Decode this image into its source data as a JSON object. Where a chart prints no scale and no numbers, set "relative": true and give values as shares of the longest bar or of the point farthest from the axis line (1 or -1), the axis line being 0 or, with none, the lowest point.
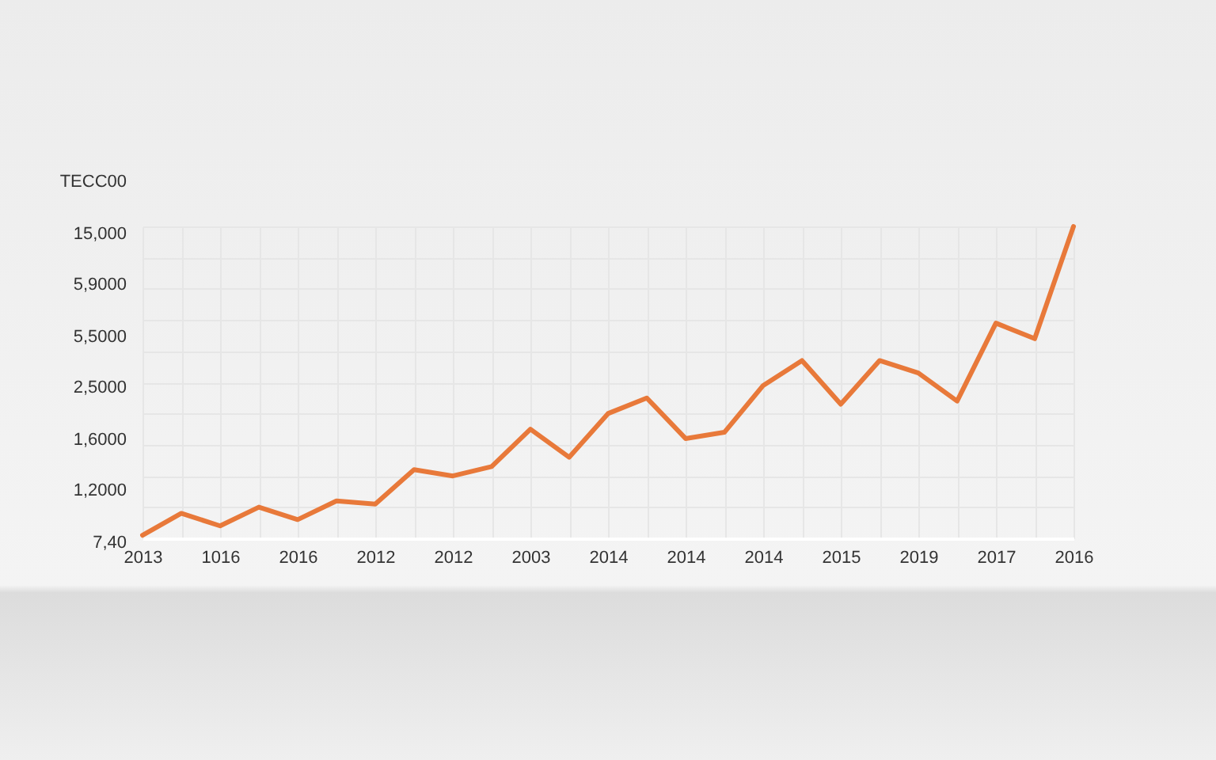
{
  "chart_data": {
    "type": "line",
    "relative": true,
    "categories": [
      "2013",
      null,
      "1016",
      null,
      "2016",
      null,
      "2012",
      null,
      "2012",
      null,
      "2003",
      null,
      "2014",
      null,
      "2014",
      null,
      "2014",
      null,
      "2015",
      null,
      "2019",
      null,
      "2017",
      null,
      "2016"
    ],
    "series": [
      {
        "color": "#e8793a",
        "values": [
          0.01,
          0.08,
          0.04,
          0.1,
          0.06,
          0.12,
          0.11,
          0.22,
          0.2,
          0.23,
          0.35,
          0.26,
          0.4,
          0.45,
          0.32,
          0.34,
          0.49,
          0.57,
          0.43,
          0.57,
          0.53,
          0.44,
          0.69,
          0.64,
          1
        ]
      }
    ],
    "annotations": [
      "TECC00",
      "15,000",
      "5,9000",
      "5,5000",
      "2,5000",
      "1,6000",
      "1,2000",
      "7,40"
    ],
    "grid": true
  }
}
